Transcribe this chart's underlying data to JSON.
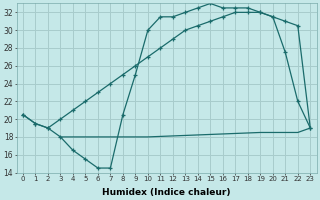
{
  "background_color": "#c5e8e8",
  "grid_color": "#a8cccc",
  "line_color": "#1a6b6b",
  "xlabel": "Humidex (Indice chaleur)",
  "ylim": [
    14,
    33
  ],
  "xlim": [
    -0.5,
    23.5
  ],
  "yticks": [
    14,
    16,
    18,
    20,
    22,
    24,
    26,
    28,
    30,
    32
  ],
  "xticks": [
    0,
    1,
    2,
    3,
    4,
    5,
    6,
    7,
    8,
    9,
    10,
    11,
    12,
    13,
    14,
    15,
    16,
    17,
    18,
    19,
    20,
    21,
    22,
    23
  ],
  "line1_x": [
    0,
    1,
    2,
    3,
    4,
    5,
    6,
    7,
    8,
    9,
    10,
    11,
    12,
    13,
    14,
    15,
    16,
    17,
    18,
    19,
    20,
    21,
    22,
    23
  ],
  "line1_y": [
    20.5,
    19.5,
    19.0,
    20.0,
    21.0,
    22.0,
    23.0,
    24.0,
    25.0,
    26.0,
    27.0,
    28.0,
    29.0,
    30.0,
    30.5,
    31.0,
    31.5,
    32.0,
    32.0,
    32.0,
    31.5,
    31.0,
    30.5,
    19.0
  ],
  "line2_x": [
    0,
    1,
    2,
    3,
    4,
    5,
    6,
    7,
    8,
    9,
    10,
    11,
    12,
    13,
    14,
    15,
    16,
    17,
    18,
    19,
    20,
    21,
    22,
    23
  ],
  "line2_y": [
    20.5,
    19.5,
    19.0,
    18.0,
    16.5,
    15.5,
    14.5,
    14.5,
    20.5,
    25.0,
    30.0,
    31.5,
    31.5,
    32.0,
    32.5,
    33.0,
    32.5,
    32.5,
    32.5,
    32.0,
    31.5,
    27.5,
    22.0,
    19.0
  ],
  "line3_x": [
    3,
    10,
    19,
    22,
    23
  ],
  "line3_y": [
    18.0,
    18.0,
    18.5,
    18.5,
    19.0
  ]
}
